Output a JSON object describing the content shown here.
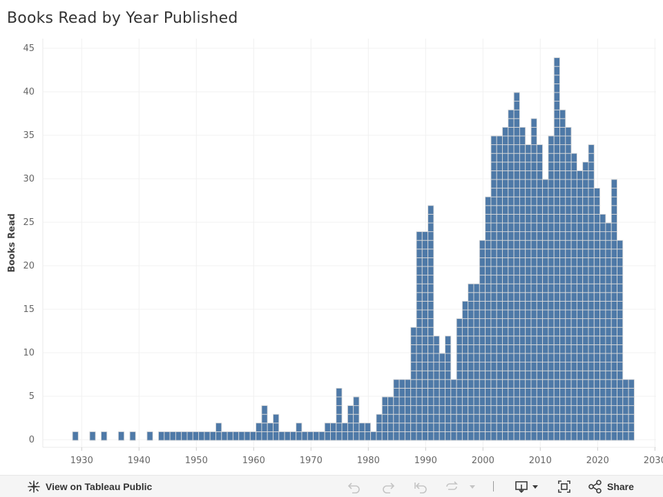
{
  "header": {
    "title": "Books Read by Year Published"
  },
  "chart_data": {
    "type": "bar",
    "title": "Books Read by Year Published",
    "xlabel": "",
    "ylabel": "Books Read",
    "xlim": [
      1924,
      2032
    ],
    "ylim": [
      -1,
      46
    ],
    "xticks": [
      1930,
      1940,
      1950,
      1960,
      1970,
      1980,
      1990,
      2000,
      2010,
      2020,
      2030
    ],
    "yticks": [
      0,
      5,
      10,
      15,
      20,
      25,
      30,
      35,
      40,
      45
    ],
    "bar_color": "#4e79a7",
    "note": "Each book is drawn as a stacked unit block; values are counts of books read per publication year.",
    "x": [
      1929,
      1932,
      1934,
      1937,
      1939,
      1942,
      1944,
      1945,
      1946,
      1947,
      1948,
      1949,
      1950,
      1951,
      1952,
      1953,
      1954,
      1955,
      1956,
      1957,
      1958,
      1959,
      1960,
      1961,
      1962,
      1963,
      1964,
      1965,
      1966,
      1967,
      1968,
      1969,
      1970,
      1971,
      1972,
      1973,
      1974,
      1975,
      1976,
      1977,
      1978,
      1979,
      1980,
      1981,
      1982,
      1983,
      1984,
      1985,
      1986,
      1987,
      1988,
      1989,
      1990,
      1991,
      1992,
      1993,
      1994,
      1995,
      1996,
      1997,
      1998,
      1999,
      2000,
      2001,
      2002,
      2003,
      2004,
      2005,
      2006,
      2007,
      2008,
      2009,
      2010,
      2011,
      2012,
      2013,
      2014,
      2015,
      2016,
      2017,
      2018,
      2019,
      2020,
      2021,
      2022,
      2023,
      2024,
      2025,
      2026
    ],
    "values": [
      1,
      1,
      1,
      1,
      1,
      1,
      1,
      1,
      1,
      1,
      1,
      1,
      1,
      1,
      1,
      1,
      2,
      1,
      1,
      1,
      1,
      1,
      1,
      2,
      4,
      2,
      3,
      1,
      1,
      1,
      2,
      1,
      1,
      1,
      1,
      2,
      2,
      6,
      2,
      4,
      5,
      2,
      2,
      1,
      3,
      5,
      5,
      7,
      7,
      7,
      13,
      24,
      24,
      27,
      12,
      10,
      12,
      7,
      14,
      16,
      18,
      18,
      23,
      28,
      35,
      35,
      36,
      38,
      40,
      36,
      34,
      37,
      34,
      30,
      35,
      44,
      38,
      36,
      33,
      31,
      32,
      34,
      29,
      26,
      25,
      30,
      23,
      7,
      7
    ]
  },
  "toolbar": {
    "view_label": "View on Tableau Public",
    "share_label": "Share"
  }
}
